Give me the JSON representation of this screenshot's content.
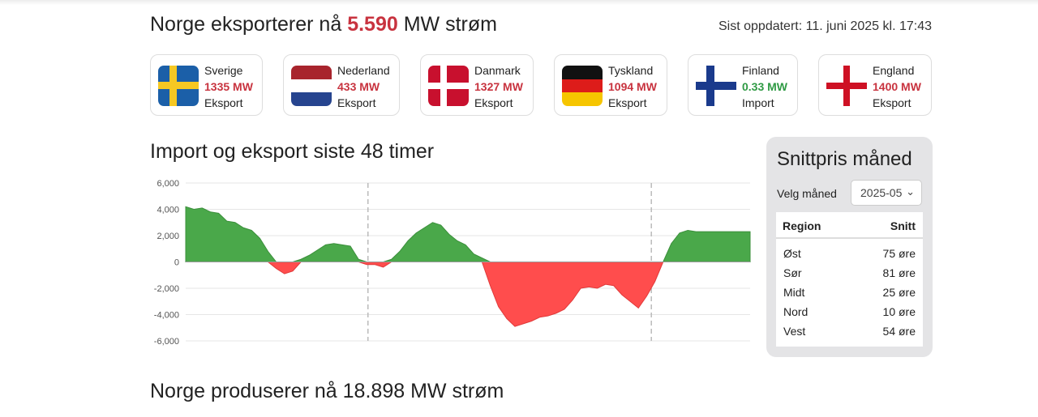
{
  "header": {
    "title_prefix": "Norge eksporterer nå",
    "export_value": "5.590",
    "title_suffix": "MW strøm",
    "updated": "Sist oppdatert: 11. juni 2025 kl. 17:43"
  },
  "countries": [
    {
      "name": "Sverige",
      "value": "1335 MW",
      "direction": "Eksport",
      "flag": "sweden-flag-icon"
    },
    {
      "name": "Nederland",
      "value": "433 MW",
      "direction": "Eksport",
      "flag": "netherlands-flag-icon"
    },
    {
      "name": "Danmark",
      "value": "1327 MW",
      "direction": "Eksport",
      "flag": "denmark-flag-icon"
    },
    {
      "name": "Tyskland",
      "value": "1094 MW",
      "direction": "Eksport",
      "flag": "germany-flag-icon"
    },
    {
      "name": "Finland",
      "value": "0.33 MW",
      "direction": "Import",
      "flag": "finland-flag-icon"
    },
    {
      "name": "England",
      "value": "1400 MW",
      "direction": "Eksport",
      "flag": "england-flag-icon"
    }
  ],
  "colors": {
    "export": "#c8333f",
    "import": "#2f9a44",
    "area_positive": "#4aa84a",
    "area_negative": "#ff4d4d"
  },
  "chart_section": {
    "title": "Import og eksport siste 48 timer"
  },
  "chart_data": {
    "type": "area",
    "title": "Import og eksport siste 48 timer",
    "xlabel": "",
    "ylabel": "",
    "ylim": [
      -6000,
      6000
    ],
    "yticks": [
      "6,000",
      "4,000",
      "2,000",
      "0",
      "-2,000",
      "-4,000",
      "-6,000"
    ],
    "grid": true,
    "day_boundaries_x": [
      15.5,
      39.6
    ],
    "series": [
      {
        "x": [
          0,
          0.7,
          1.4,
          2.1,
          2.8,
          3.5,
          4.2,
          4.9,
          5.6,
          6.3,
          7.0,
          7.7,
          8.4,
          9.1,
          9.8,
          10.5,
          11.2,
          11.9,
          12.6,
          13.3,
          14.0,
          14.7,
          15.4,
          16.1,
          16.8,
          17.5,
          18.2,
          18.9,
          19.6,
          20.3,
          21.0,
          21.7,
          22.4,
          23.1,
          23.8,
          24.5,
          25.2,
          25.9,
          26.6,
          27.3,
          28.0,
          28.7,
          29.4,
          30.1,
          30.8,
          31.5,
          32.2,
          32.9,
          33.6,
          34.3,
          35.0,
          35.7,
          36.4,
          37.1,
          37.8,
          38.5,
          39.2,
          39.9,
          40.6,
          41.3,
          42.0,
          42.7,
          43.4,
          44.1,
          44.8,
          45.5,
          46.2,
          46.9,
          47.6,
          48.0
        ],
        "values": [
          4200,
          4000,
          4100,
          3800,
          3700,
          3100,
          3000,
          2600,
          2400,
          1800,
          800,
          -500,
          -900,
          -700,
          200,
          500,
          900,
          1300,
          1400,
          1300,
          1200,
          200,
          -200,
          -200,
          -400,
          200,
          800,
          1600,
          2200,
          2600,
          3000,
          2800,
          2100,
          1600,
          1300,
          600,
          300,
          -1800,
          -3400,
          -4300,
          -4900,
          -4700,
          -4500,
          -4200,
          -4100,
          -3900,
          -3600,
          -2900,
          -2000,
          -1900,
          -2000,
          -1700,
          -1800,
          -2500,
          -3000,
          -3500,
          -2600,
          -1500,
          0,
          1400,
          2200,
          2400,
          2300,
          2300,
          2300,
          2300,
          2300,
          2300,
          2300,
          2300
        ]
      }
    ]
  },
  "panel": {
    "title": "Snittpris måned",
    "select_label": "Velg måned",
    "selected_month": "2025-05",
    "col_region": "Region",
    "col_avg": "Snitt",
    "rows": [
      {
        "region": "Øst",
        "avg": "75 øre"
      },
      {
        "region": "Sør",
        "avg": "81 øre"
      },
      {
        "region": "Midt",
        "avg": "25 øre"
      },
      {
        "region": "Nord",
        "avg": "10 øre"
      },
      {
        "region": "Vest",
        "avg": "54 øre"
      }
    ]
  },
  "production": {
    "prefix": "Norge produserer nå",
    "value": "18.898",
    "suffix": "MW strøm"
  }
}
